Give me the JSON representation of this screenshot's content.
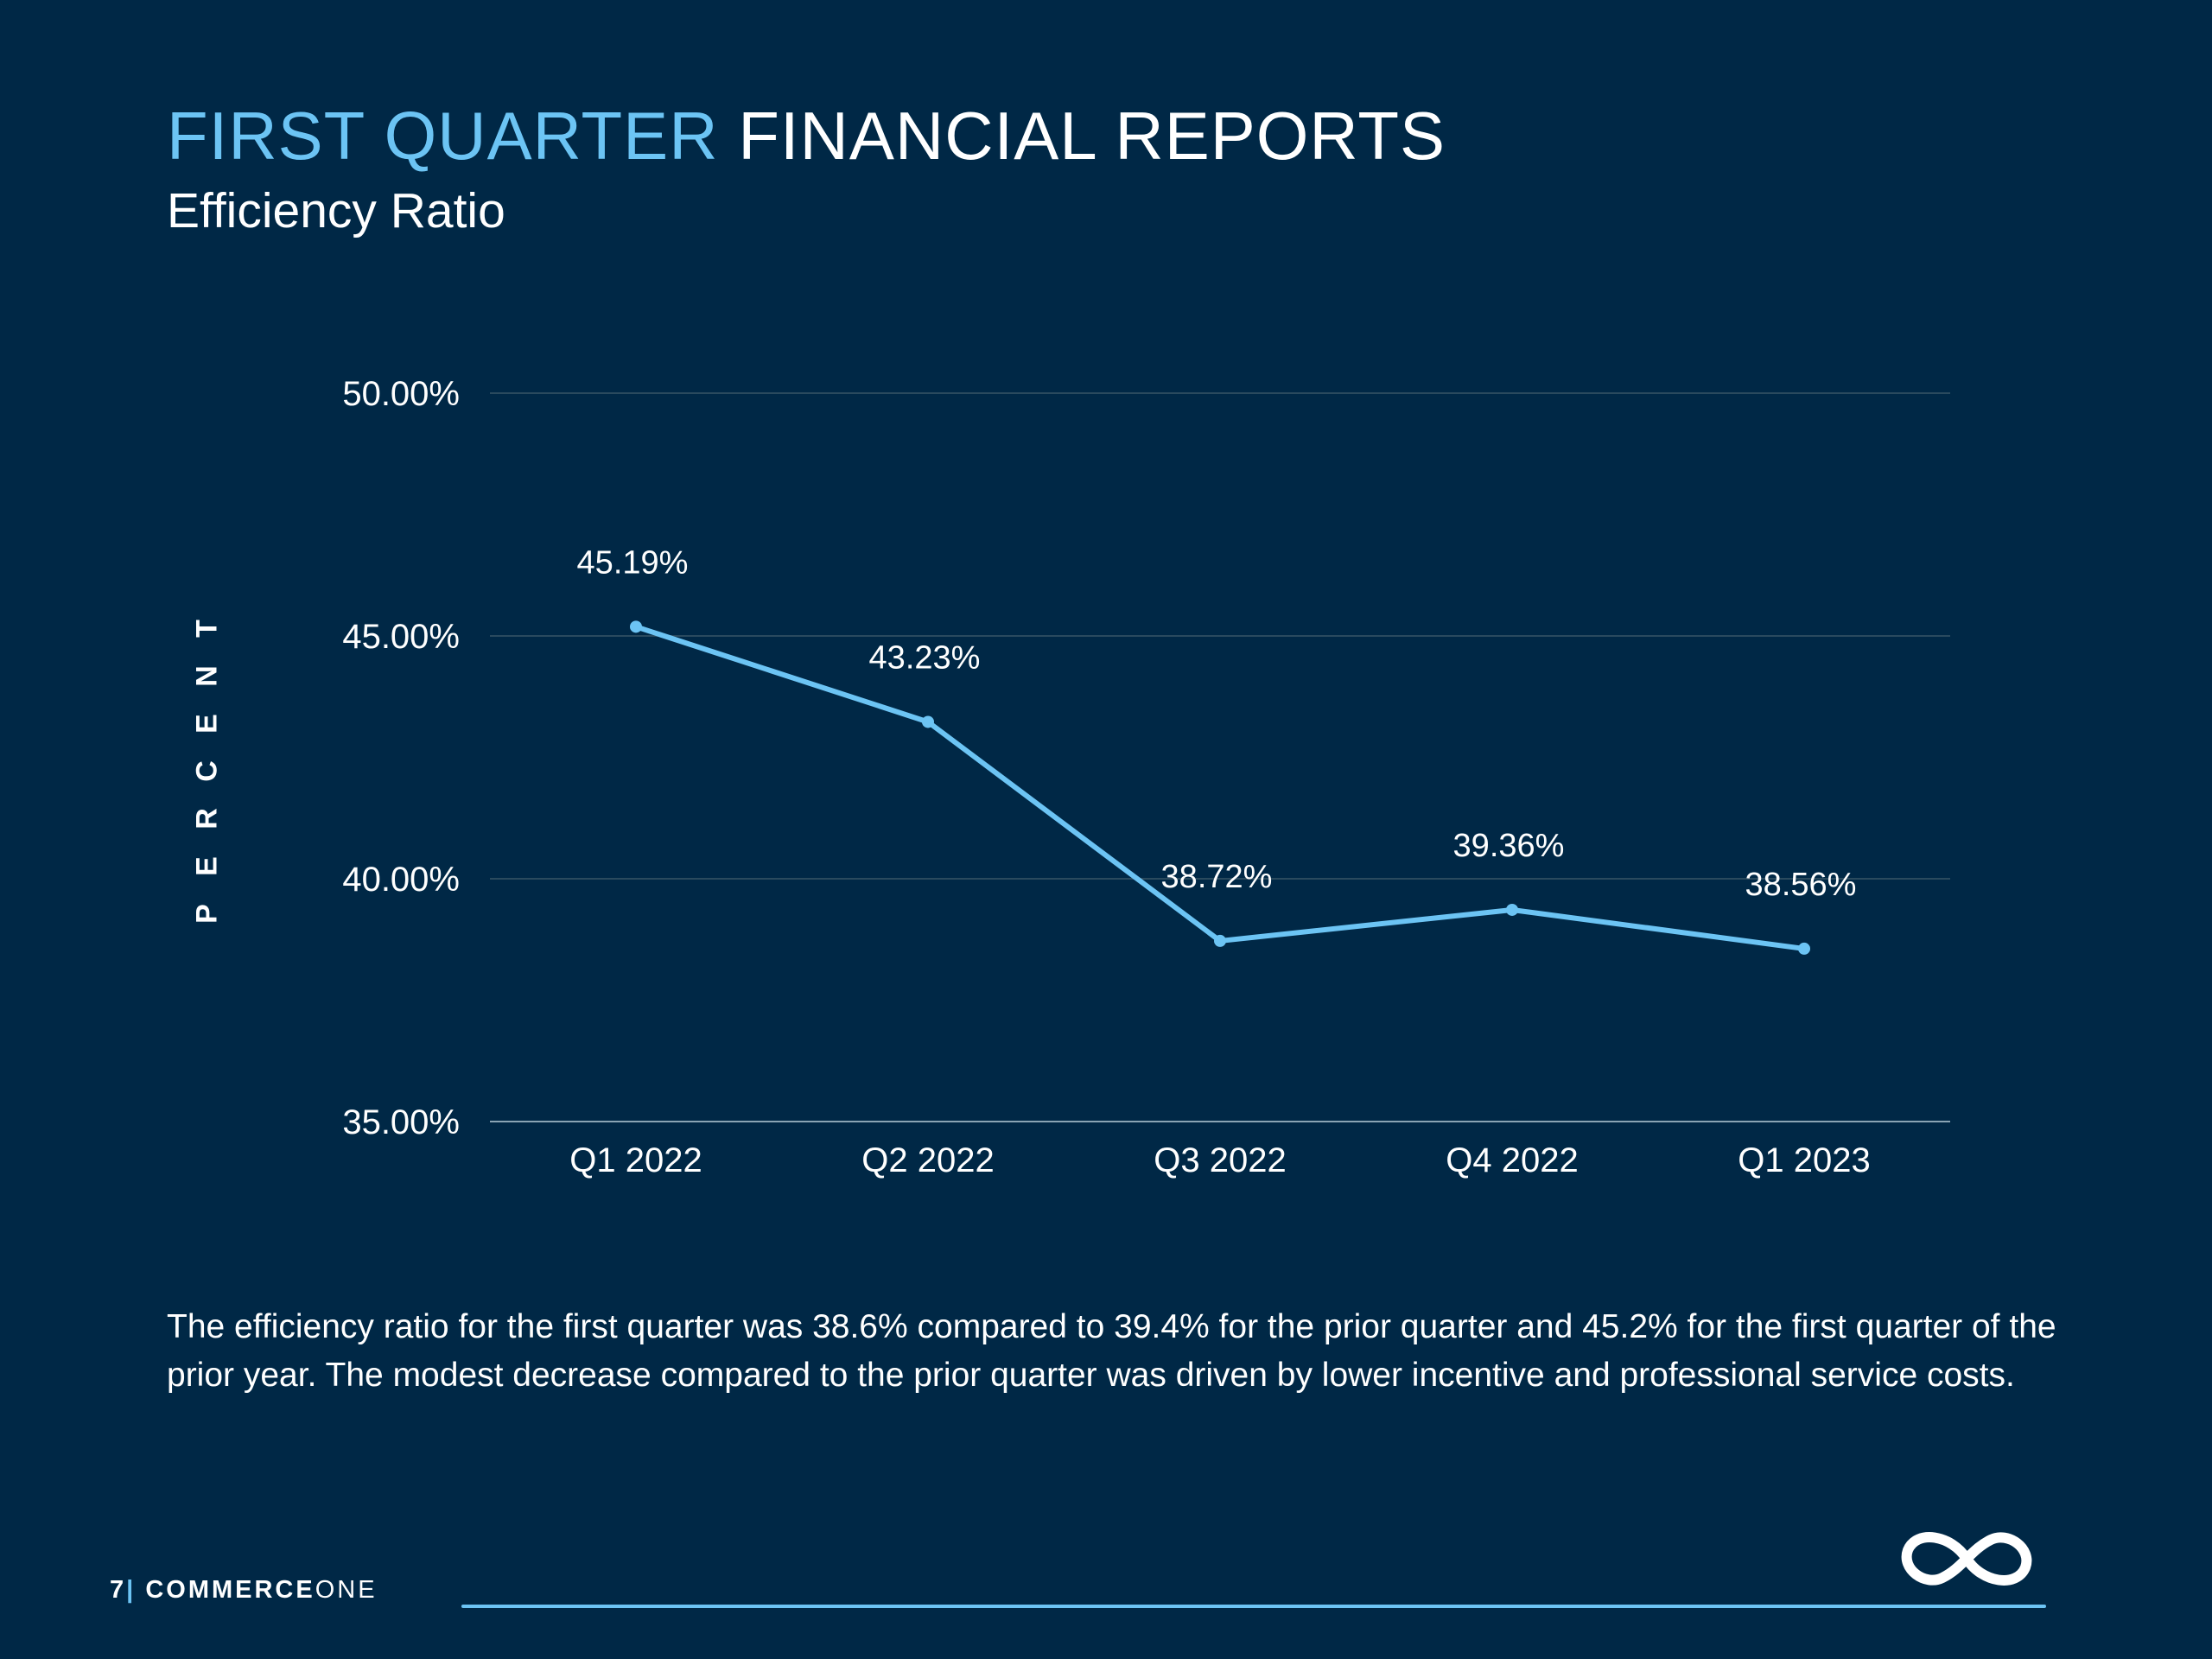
{
  "header": {
    "title_accent": "FIRST QUARTER",
    "title_rest": "FINANCIAL REPORTS",
    "subtitle": "Efficiency Ratio"
  },
  "colors": {
    "background": "#002846",
    "accent": "#6cc4f4",
    "text": "#ffffff",
    "grid": "#2a4a5e"
  },
  "chart_data": {
    "type": "line",
    "categories": [
      "Q1 2022",
      "Q2 2022",
      "Q3 2022",
      "Q4 2022",
      "Q1 2023"
    ],
    "series": [
      {
        "values": [
          45.19,
          43.23,
          38.72,
          39.36,
          38.56
        ],
        "labels": [
          "45.19%",
          "43.23%",
          "38.72%",
          "39.36%",
          "38.56%"
        ],
        "color": "#6cc4f4"
      }
    ],
    "ylabel": "PERCENT",
    "ylim": [
      35,
      50
    ],
    "yticks": [
      50,
      45,
      40,
      35
    ],
    "ytick_labels": [
      "50.00%",
      "45.00%",
      "40.00%",
      "35.00%"
    ],
    "grid": true,
    "markers": true
  },
  "caption": "The efficiency ratio for the first quarter was 38.6% compared to 39.4% for the prior quarter and 45.2% for the first quarter of the prior year. The modest decrease compared to the prior quarter was driven by lower incentive and professional service costs.",
  "footer": {
    "page_number": "7",
    "separator": "|",
    "brand_bold": "COMMERCE",
    "brand_light": "ONE"
  },
  "logo": {
    "icon": "infinity-icon"
  }
}
